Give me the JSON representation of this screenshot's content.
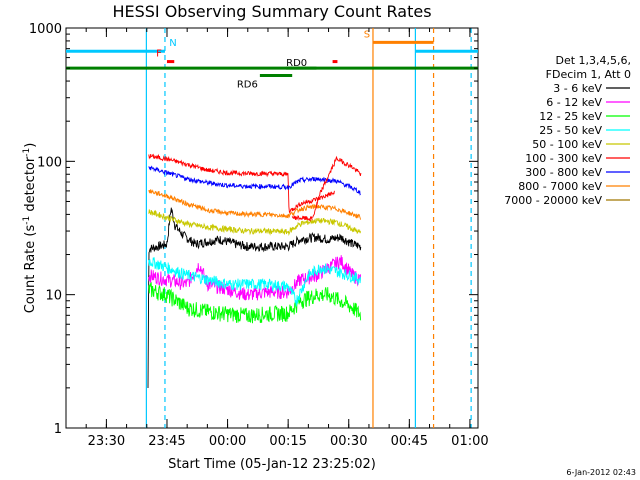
{
  "chart_data": {
    "type": "line",
    "title": "HESSI Observing Summary Count Rates",
    "xlabel": "Start Time (05-Jan-12 23:25:02)",
    "ylabel_main": "Count Rate (s",
    "ylabel_sup1": "-1",
    "ylabel_mid": " detector",
    "ylabel_sup2": "-1",
    "ylabel_end": ")",
    "y_scale": "log",
    "ylim": [
      1,
      1000
    ],
    "xlim_minutes": [
      -5,
      97
    ],
    "yticks": [
      {
        "value": 1,
        "label": "1"
      },
      {
        "value": 10,
        "label": "10"
      },
      {
        "value": 100,
        "label": "100"
      },
      {
        "value": 1000,
        "label": "1000"
      }
    ],
    "xticks": [
      {
        "minute": 5,
        "label": "23:30"
      },
      {
        "minute": 20,
        "label": "23:45"
      },
      {
        "minute": 35,
        "label": "00:00"
      },
      {
        "minute": 50,
        "label": "00:15"
      },
      {
        "minute": 65,
        "label": "00:30"
      },
      {
        "minute": 80,
        "label": "00:45"
      },
      {
        "minute": 95,
        "label": "01:00"
      }
    ],
    "timestamp": "6-Jan-2012 02:43",
    "legend_header": [
      "Det 1,3,4,5,6,",
      "FDecim 1, Att 0"
    ],
    "legend_position": "right",
    "series": [
      {
        "name": "3 - 6 keV",
        "color": "#000000",
        "points": [
          [
            15.3,
            2.0
          ],
          [
            15.5,
            22
          ],
          [
            20,
            24
          ],
          [
            21,
            45
          ],
          [
            22,
            33
          ],
          [
            24,
            28
          ],
          [
            27,
            24
          ],
          [
            30,
            25
          ],
          [
            33,
            26
          ],
          [
            37,
            24
          ],
          [
            40,
            23
          ],
          [
            45,
            23
          ],
          [
            50,
            23
          ],
          [
            53,
            26
          ],
          [
            57,
            27
          ],
          [
            60,
            26
          ],
          [
            63,
            27
          ],
          [
            66,
            24
          ],
          [
            68,
            23
          ]
        ]
      },
      {
        "name": "6 - 12 keV",
        "color": "#ff00ff",
        "points": [
          [
            15.5,
            14
          ],
          [
            20,
            13
          ],
          [
            25,
            12
          ],
          [
            28,
            17
          ],
          [
            30,
            12
          ],
          [
            35,
            11
          ],
          [
            40,
            10
          ],
          [
            45,
            10.5
          ],
          [
            50,
            10.5
          ],
          [
            53,
            13
          ],
          [
            57,
            14
          ],
          [
            60,
            16
          ],
          [
            63,
            18
          ],
          [
            66,
            14
          ],
          [
            68,
            13
          ]
        ]
      },
      {
        "name": "12 - 25 keV",
        "color": "#00ff00",
        "points": [
          [
            15.5,
            11
          ],
          [
            20,
            10
          ],
          [
            25,
            8
          ],
          [
            30,
            7.5
          ],
          [
            35,
            7.2
          ],
          [
            40,
            7
          ],
          [
            45,
            7.2
          ],
          [
            50,
            7.3
          ],
          [
            53,
            9
          ],
          [
            57,
            10
          ],
          [
            60,
            10
          ],
          [
            63,
            9
          ],
          [
            66,
            8
          ],
          [
            68,
            7
          ]
        ]
      },
      {
        "name": "25 - 50 keV",
        "color": "#00ffff",
        "points": [
          [
            15.5,
            18
          ],
          [
            20,
            16
          ],
          [
            25,
            14
          ],
          [
            30,
            13
          ],
          [
            35,
            12
          ],
          [
            40,
            12
          ],
          [
            45,
            12
          ],
          [
            50,
            11.5
          ],
          [
            52,
            9
          ],
          [
            55,
            14
          ],
          [
            58,
            16
          ],
          [
            62,
            15
          ],
          [
            65,
            14
          ],
          [
            68,
            13
          ]
        ]
      },
      {
        "name": "50 - 100 keV",
        "color": "#c8c800",
        "points": [
          [
            15.5,
            42
          ],
          [
            20,
            38
          ],
          [
            25,
            34
          ],
          [
            30,
            32
          ],
          [
            35,
            31
          ],
          [
            40,
            30
          ],
          [
            45,
            30
          ],
          [
            50,
            29.5
          ],
          [
            53,
            34
          ],
          [
            57,
            36
          ],
          [
            62,
            35
          ],
          [
            66,
            31
          ],
          [
            68,
            29
          ]
        ]
      },
      {
        "name": "100 - 300 keV",
        "color": "#ff0000",
        "points": [
          [
            15.5,
            110
          ],
          [
            20,
            104
          ],
          [
            25,
            95
          ],
          [
            30,
            86
          ],
          [
            35,
            82
          ],
          [
            40,
            81
          ],
          [
            45,
            81
          ],
          [
            50,
            80
          ],
          [
            50.2,
            42
          ],
          [
            53,
            48
          ],
          [
            57,
            52
          ],
          [
            60,
            56
          ],
          [
            61.5,
            58
          ]
        ]
      },
      {
        "name": "300 - 800 keV",
        "color": "#0000ff",
        "points": [
          [
            15.5,
            90
          ],
          [
            20,
            82
          ],
          [
            25,
            74
          ],
          [
            30,
            69
          ],
          [
            35,
            66
          ],
          [
            40,
            65
          ],
          [
            45,
            65
          ],
          [
            50,
            64
          ],
          [
            53,
            72
          ],
          [
            57,
            74
          ],
          [
            62,
            71
          ],
          [
            66,
            63
          ],
          [
            68,
            58
          ]
        ]
      },
      {
        "name": "800 - 7000 keV",
        "color": "#ff8000",
        "points": [
          [
            15.5,
            60
          ],
          [
            20,
            55
          ],
          [
            25,
            48
          ],
          [
            30,
            43
          ],
          [
            35,
            41
          ],
          [
            40,
            40
          ],
          [
            45,
            40
          ],
          [
            50,
            39
          ],
          [
            53,
            44
          ],
          [
            57,
            46
          ],
          [
            62,
            44
          ],
          [
            66,
            40
          ],
          [
            68,
            38
          ]
        ]
      },
      {
        "name": "7000 - 20000 keV",
        "color": "#a07800",
        "points": []
      }
    ],
    "segment_series": [
      {
        "name": "red-2",
        "color": "#ff0000",
        "points": [
          [
            51,
            38
          ],
          [
            56,
            37
          ]
        ]
      },
      {
        "name": "red-3",
        "color": "#ff0000",
        "points": [
          [
            56,
            37
          ],
          [
            58,
            58
          ],
          [
            62,
            105
          ],
          [
            66,
            90
          ],
          [
            68,
            80
          ]
        ]
      }
    ],
    "flag_bars": [
      {
        "label": "",
        "color": "#00c8ff",
        "x0": -5,
        "x1": 19.5,
        "y": 670
      },
      {
        "label": "",
        "color": "#00c8ff",
        "x0": 81.5,
        "x1": 97,
        "y": 670
      },
      {
        "label": "",
        "color": "#008000",
        "x0": -5,
        "x1": 97,
        "y": 500
      },
      {
        "label": "RD6",
        "color": "#008000",
        "x0": 43,
        "x1": 51,
        "y": 440
      },
      {
        "label": "RD0",
        "color": "#008000",
        "x0": 49.5,
        "x1": 57,
        "y": 500
      },
      {
        "label": "F",
        "color": "#ff0000",
        "x0": 20,
        "x1": 21.8,
        "y": 560
      },
      {
        "label": "",
        "color": "#ff0000",
        "x0": 61,
        "x1": 62.2,
        "y": 560
      },
      {
        "label": "S",
        "color": "#ff8000",
        "x0": 71,
        "x1": 86,
        "y": 780
      },
      {
        "label": "N",
        "color": "#00c8ff",
        "x0": 19.5,
        "x1": 19.5,
        "y": 670
      }
    ],
    "vlines": [
      {
        "x": 14.9,
        "color": "#00c8ff",
        "dash": false
      },
      {
        "x": 19.5,
        "color": "#00c8ff",
        "dash": true
      },
      {
        "x": 71,
        "color": "#ff8000",
        "dash": false
      },
      {
        "x": 81.5,
        "color": "#00c8ff",
        "dash": false
      },
      {
        "x": 86,
        "color": "#ff8000",
        "dash": true
      },
      {
        "x": 95.3,
        "color": "#00c8ff",
        "dash": true
      }
    ]
  }
}
